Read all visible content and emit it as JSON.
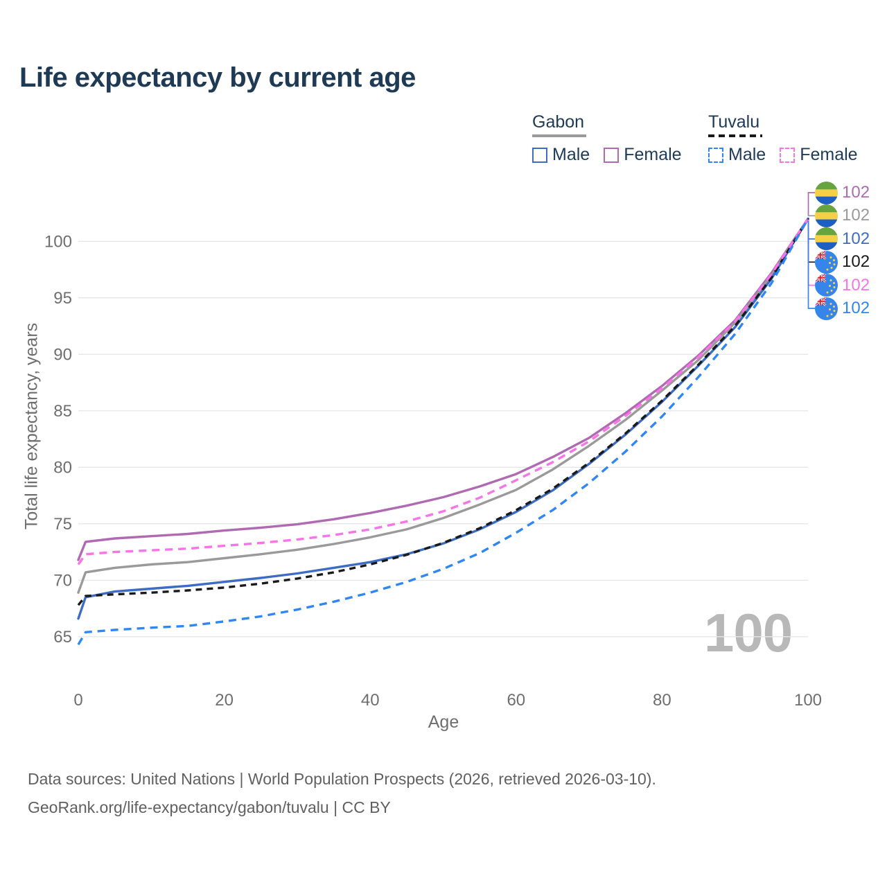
{
  "header": {
    "title": "Life expectancy by current age"
  },
  "legend": {
    "groups": [
      {
        "label": "Gabon",
        "line_style": "solid",
        "swatch_color": "#9a9a9a",
        "items": [
          {
            "label": "Male",
            "color": "#3d6cc2",
            "dashed": false
          },
          {
            "label": "Female",
            "color": "#b06ab2",
            "dashed": false
          }
        ]
      },
      {
        "label": "Tuvalu",
        "line_style": "dashed",
        "swatch_color": "#1a1a1a",
        "items": [
          {
            "label": "Male",
            "color": "#2f86f5",
            "dashed": true
          },
          {
            "label": "Female",
            "color": "#f973e9",
            "dashed": true
          }
        ]
      }
    ]
  },
  "chart_data": {
    "type": "line",
    "title": "Life expectancy by current age",
    "xlabel": "Age",
    "ylabel": "Total life expectancy, years",
    "xlim": [
      0,
      100
    ],
    "ylim": [
      65,
      100
    ],
    "x_ticks": [
      0,
      20,
      40,
      60,
      80,
      100
    ],
    "y_ticks": [
      65,
      70,
      75,
      80,
      85,
      90,
      95,
      100
    ],
    "grid": "horizontal",
    "legend_position": "top-right",
    "age_counter": "100",
    "x": [
      0,
      1,
      5,
      10,
      15,
      20,
      25,
      30,
      35,
      40,
      45,
      50,
      55,
      60,
      65,
      70,
      75,
      80,
      85,
      90,
      95,
      100
    ],
    "series": [
      {
        "name": "Gabon Female",
        "country": "Gabon",
        "sex": "Female",
        "flag": "gabon",
        "color": "#b06ab2",
        "dashed": false,
        "end_label": "102",
        "values": [
          71.8,
          73.4,
          73.7,
          73.9,
          74.1,
          74.4,
          74.65,
          74.95,
          75.4,
          75.95,
          76.6,
          77.35,
          78.3,
          79.4,
          80.9,
          82.6,
          84.8,
          87.2,
          89.9,
          93.0,
          97.2,
          102
        ]
      },
      {
        "name": "Gabon Both sexes",
        "country": "Gabon",
        "sex": "Both",
        "flag": "gabon",
        "color": "#9a9a9a",
        "dashed": false,
        "end_label": "102",
        "values": [
          68.9,
          70.7,
          71.1,
          71.4,
          71.6,
          71.95,
          72.3,
          72.7,
          73.2,
          73.8,
          74.5,
          75.5,
          76.7,
          78.0,
          79.8,
          81.9,
          84.2,
          86.8,
          89.5,
          92.8,
          97.0,
          102
        ]
      },
      {
        "name": "Gabon Male",
        "country": "Gabon",
        "sex": "Male",
        "flag": "gabon",
        "color": "#3d6cc2",
        "dashed": false,
        "end_label": "102",
        "values": [
          66.6,
          68.5,
          69.0,
          69.25,
          69.5,
          69.85,
          70.2,
          70.6,
          71.1,
          71.6,
          72.3,
          73.25,
          74.5,
          76.05,
          77.95,
          80.3,
          82.9,
          85.8,
          89.0,
          92.4,
          96.7,
          102
        ]
      },
      {
        "name": "Tuvalu Both sexes",
        "country": "Tuvalu",
        "sex": "Both",
        "flag": "tuvalu",
        "color": "#1a1a1a",
        "dashed": true,
        "end_label": "102",
        "values": [
          67.8,
          68.6,
          68.75,
          68.9,
          69.1,
          69.35,
          69.7,
          70.15,
          70.7,
          71.4,
          72.25,
          73.3,
          74.6,
          76.2,
          78.1,
          80.4,
          83.0,
          85.9,
          89.1,
          92.5,
          96.8,
          102
        ]
      },
      {
        "name": "Tuvalu Female",
        "country": "Tuvalu",
        "sex": "Female",
        "flag": "tuvalu",
        "color": "#f973e9",
        "dashed": true,
        "end_label": "102",
        "values": [
          71.4,
          72.3,
          72.5,
          72.65,
          72.8,
          73.05,
          73.3,
          73.6,
          74.0,
          74.5,
          75.2,
          76.1,
          77.3,
          78.85,
          80.45,
          82.3,
          84.55,
          87.0,
          89.75,
          92.9,
          97.1,
          102
        ]
      },
      {
        "name": "Tuvalu Male",
        "country": "Tuvalu",
        "sex": "Male",
        "flag": "tuvalu",
        "color": "#2f86f5",
        "dashed": true,
        "end_label": "102",
        "values": [
          64.3,
          65.4,
          65.6,
          65.8,
          65.95,
          66.35,
          66.8,
          67.4,
          68.1,
          68.9,
          69.85,
          71.0,
          72.4,
          74.2,
          76.2,
          78.6,
          81.4,
          84.5,
          88.0,
          91.8,
          96.3,
          102
        ]
      }
    ]
  },
  "annotations": {
    "watermark": "100"
  },
  "footer": {
    "line1": "Data sources: United Nations | World Population Prospects (2026, retrieved 2026-03-10).",
    "line2": "GeoRank.org/life-expectancy/gabon/tuvalu | CC BY"
  }
}
